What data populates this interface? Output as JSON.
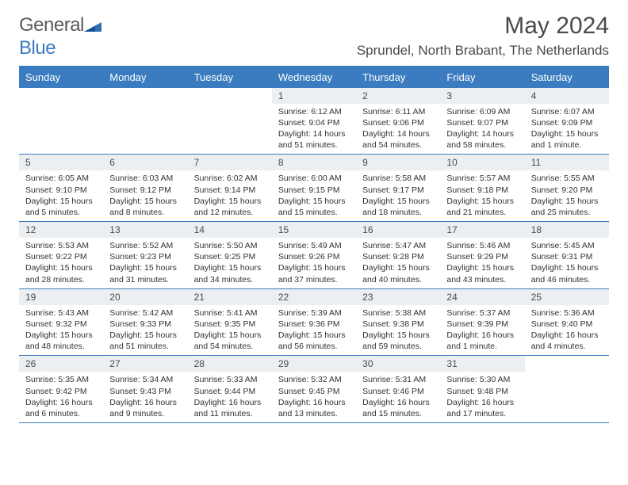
{
  "brand": {
    "name_gray": "General",
    "name_blue": "Blue"
  },
  "title": "May 2024",
  "location": "Sprundel, North Brabant, The Netherlands",
  "colors": {
    "primary": "#3b7bbf",
    "daynum_bg": "#eceff2",
    "text": "#4a4a4a",
    "body_text": "#333333",
    "white": "#ffffff"
  },
  "day_names": [
    "Sunday",
    "Monday",
    "Tuesday",
    "Wednesday",
    "Thursday",
    "Friday",
    "Saturday"
  ],
  "leading_blanks": 3,
  "days": [
    {
      "n": 1,
      "sunrise": "6:12 AM",
      "sunset": "9:04 PM",
      "daylight": "14 hours and 51 minutes."
    },
    {
      "n": 2,
      "sunrise": "6:11 AM",
      "sunset": "9:06 PM",
      "daylight": "14 hours and 54 minutes."
    },
    {
      "n": 3,
      "sunrise": "6:09 AM",
      "sunset": "9:07 PM",
      "daylight": "14 hours and 58 minutes."
    },
    {
      "n": 4,
      "sunrise": "6:07 AM",
      "sunset": "9:09 PM",
      "daylight": "15 hours and 1 minute."
    },
    {
      "n": 5,
      "sunrise": "6:05 AM",
      "sunset": "9:10 PM",
      "daylight": "15 hours and 5 minutes."
    },
    {
      "n": 6,
      "sunrise": "6:03 AM",
      "sunset": "9:12 PM",
      "daylight": "15 hours and 8 minutes."
    },
    {
      "n": 7,
      "sunrise": "6:02 AM",
      "sunset": "9:14 PM",
      "daylight": "15 hours and 12 minutes."
    },
    {
      "n": 8,
      "sunrise": "6:00 AM",
      "sunset": "9:15 PM",
      "daylight": "15 hours and 15 minutes."
    },
    {
      "n": 9,
      "sunrise": "5:58 AM",
      "sunset": "9:17 PM",
      "daylight": "15 hours and 18 minutes."
    },
    {
      "n": 10,
      "sunrise": "5:57 AM",
      "sunset": "9:18 PM",
      "daylight": "15 hours and 21 minutes."
    },
    {
      "n": 11,
      "sunrise": "5:55 AM",
      "sunset": "9:20 PM",
      "daylight": "15 hours and 25 minutes."
    },
    {
      "n": 12,
      "sunrise": "5:53 AM",
      "sunset": "9:22 PM",
      "daylight": "15 hours and 28 minutes."
    },
    {
      "n": 13,
      "sunrise": "5:52 AM",
      "sunset": "9:23 PM",
      "daylight": "15 hours and 31 minutes."
    },
    {
      "n": 14,
      "sunrise": "5:50 AM",
      "sunset": "9:25 PM",
      "daylight": "15 hours and 34 minutes."
    },
    {
      "n": 15,
      "sunrise": "5:49 AM",
      "sunset": "9:26 PM",
      "daylight": "15 hours and 37 minutes."
    },
    {
      "n": 16,
      "sunrise": "5:47 AM",
      "sunset": "9:28 PM",
      "daylight": "15 hours and 40 minutes."
    },
    {
      "n": 17,
      "sunrise": "5:46 AM",
      "sunset": "9:29 PM",
      "daylight": "15 hours and 43 minutes."
    },
    {
      "n": 18,
      "sunrise": "5:45 AM",
      "sunset": "9:31 PM",
      "daylight": "15 hours and 46 minutes."
    },
    {
      "n": 19,
      "sunrise": "5:43 AM",
      "sunset": "9:32 PM",
      "daylight": "15 hours and 48 minutes."
    },
    {
      "n": 20,
      "sunrise": "5:42 AM",
      "sunset": "9:33 PM",
      "daylight": "15 hours and 51 minutes."
    },
    {
      "n": 21,
      "sunrise": "5:41 AM",
      "sunset": "9:35 PM",
      "daylight": "15 hours and 54 minutes."
    },
    {
      "n": 22,
      "sunrise": "5:39 AM",
      "sunset": "9:36 PM",
      "daylight": "15 hours and 56 minutes."
    },
    {
      "n": 23,
      "sunrise": "5:38 AM",
      "sunset": "9:38 PM",
      "daylight": "15 hours and 59 minutes."
    },
    {
      "n": 24,
      "sunrise": "5:37 AM",
      "sunset": "9:39 PM",
      "daylight": "16 hours and 1 minute."
    },
    {
      "n": 25,
      "sunrise": "5:36 AM",
      "sunset": "9:40 PM",
      "daylight": "16 hours and 4 minutes."
    },
    {
      "n": 26,
      "sunrise": "5:35 AM",
      "sunset": "9:42 PM",
      "daylight": "16 hours and 6 minutes."
    },
    {
      "n": 27,
      "sunrise": "5:34 AM",
      "sunset": "9:43 PM",
      "daylight": "16 hours and 9 minutes."
    },
    {
      "n": 28,
      "sunrise": "5:33 AM",
      "sunset": "9:44 PM",
      "daylight": "16 hours and 11 minutes."
    },
    {
      "n": 29,
      "sunrise": "5:32 AM",
      "sunset": "9:45 PM",
      "daylight": "16 hours and 13 minutes."
    },
    {
      "n": 30,
      "sunrise": "5:31 AM",
      "sunset": "9:46 PM",
      "daylight": "16 hours and 15 minutes."
    },
    {
      "n": 31,
      "sunrise": "5:30 AM",
      "sunset": "9:48 PM",
      "daylight": "16 hours and 17 minutes."
    }
  ],
  "labels": {
    "sunrise": "Sunrise:",
    "sunset": "Sunset:",
    "daylight": "Daylight:"
  }
}
